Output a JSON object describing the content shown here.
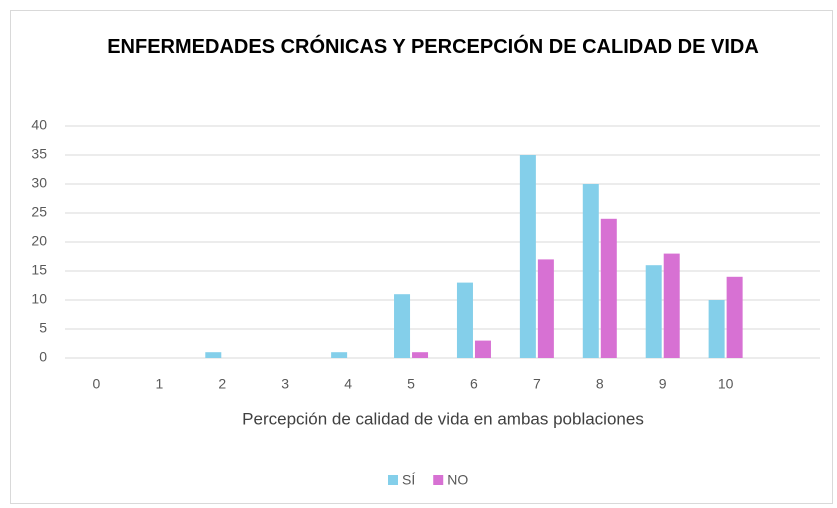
{
  "chart_data": {
    "type": "bar",
    "title": "ENFERMEDADES CRÓNICAS Y PERCEPCIÓN DE CALIDAD DE VIDA",
    "x_label": "Percepción de calidad de vida en ambas poblaciones",
    "categories": [
      "0",
      "1",
      "2",
      "3",
      "4",
      "5",
      "6",
      "7",
      "8",
      "9",
      "10",
      null
    ],
    "series": [
      {
        "name": "SÍ",
        "color": "#84cfea",
        "values": [
          0,
          0,
          1,
          0,
          1,
          11,
          13,
          35,
          30,
          16,
          10,
          null
        ]
      },
      {
        "name": "NO",
        "color": "#d771d3",
        "values": [
          0,
          0,
          0,
          0,
          0,
          1,
          3,
          17,
          24,
          18,
          14,
          null
        ]
      }
    ],
    "ylim": [
      0,
      40
    ],
    "yticks": [
      0,
      5,
      10,
      15,
      20,
      25,
      30,
      35,
      40
    ],
    "grid": true,
    "legend": "bottom"
  }
}
